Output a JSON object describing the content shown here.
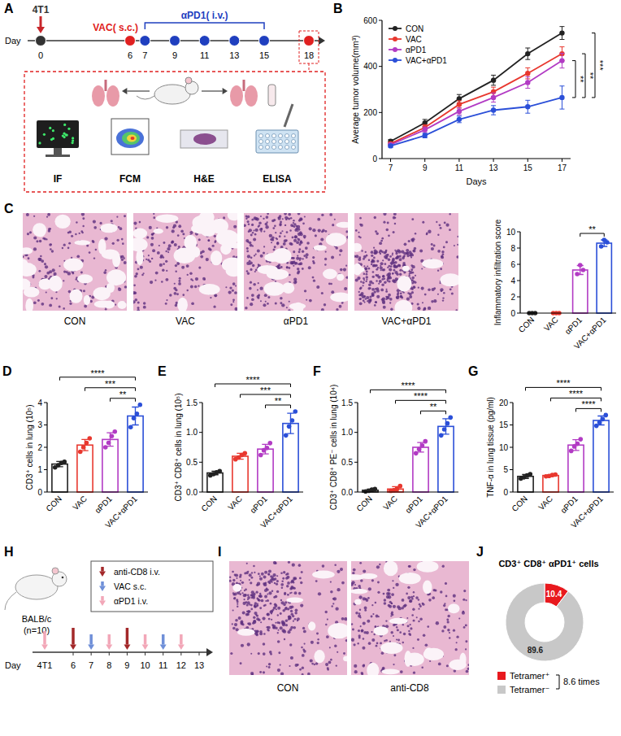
{
  "panel_labels": [
    "A",
    "B",
    "C",
    "D",
    "E",
    "F",
    "G",
    "H",
    "I",
    "J"
  ],
  "timeline_a": {
    "day_label": "Day",
    "days": [
      0,
      6,
      7,
      9,
      11,
      13,
      15,
      18
    ],
    "events": [
      {
        "label": "4T1",
        "days": [
          0
        ],
        "color": "#333333"
      },
      {
        "label": "VAC( s.c.)",
        "days": [
          6
        ],
        "color": "#e02020"
      },
      {
        "label": "αPD1( i.v.)",
        "days": [
          7,
          9,
          11,
          13,
          15
        ],
        "color": "#1f3fbf"
      }
    ],
    "assays": [
      "IF",
      "FCM",
      "H&E",
      "ELISA"
    ]
  },
  "images_c": {
    "labels": [
      "CON",
      "VAC",
      "αPD1",
      "VAC+αPD1"
    ]
  },
  "timeline_h": {
    "strain": "BALB/c",
    "n_label": "(n=10)",
    "tumor": "4T1",
    "day_label": "Day",
    "days": [
      6,
      7,
      8,
      9,
      10,
      11,
      12,
      13
    ],
    "treatments": [
      {
        "label": "anti-CD8 i.v.",
        "days": [
          6,
          9
        ],
        "color": "#a3282a"
      },
      {
        "label": "VAC s.c.",
        "days": [
          7,
          11
        ],
        "color": "#6f8fd8"
      },
      {
        "label": "αPD1 i.v.",
        "days": [
          8,
          10,
          12
        ],
        "color": "#f2a7b8"
      }
    ]
  },
  "images_i": {
    "labels": [
      "CON",
      "anti-CD8"
    ]
  },
  "chart_data": [
    {
      "type": "line",
      "x_label": "Days",
      "y_label": "Average tumor volume(mm³)",
      "x": [
        7,
        9,
        11,
        13,
        15,
        17
      ],
      "xlim": [
        6.5,
        17.5
      ],
      "xticks": [
        7,
        9,
        11,
        13,
        15,
        17
      ],
      "ylim": [
        0,
        600
      ],
      "yticks": [
        0,
        200,
        400,
        600
      ],
      "grid": false,
      "legend": "top-left",
      "marker": "circle",
      "series": [
        {
          "name": "CON",
          "color": "#222222",
          "values": [
            75,
            155,
            260,
            340,
            455,
            545
          ],
          "errors": [
            8,
            15,
            18,
            22,
            25,
            28
          ]
        },
        {
          "name": "VAC",
          "color": "#e8382f",
          "values": [
            65,
            135,
            235,
            290,
            370,
            455
          ],
          "errors": [
            7,
            12,
            16,
            20,
            24,
            30
          ]
        },
        {
          "name": "αPD1",
          "color": "#b23bc4",
          "values": [
            60,
            125,
            205,
            265,
            330,
            425
          ],
          "errors": [
            6,
            12,
            15,
            20,
            25,
            32
          ]
        },
        {
          "name": "VAC+αPD1",
          "color": "#2b4fd8",
          "values": [
            55,
            100,
            170,
            210,
            225,
            265
          ],
          "errors": [
            6,
            10,
            14,
            20,
            28,
            50
          ]
        }
      ],
      "annotations": [
        {
          "from": "αPD1",
          "to": "VAC+αPD1",
          "text": "**"
        },
        {
          "from": "VAC",
          "to": "VAC+αPD1",
          "text": "**"
        },
        {
          "from": "CON",
          "to": "VAC+αPD1",
          "text": "***"
        }
      ]
    },
    {
      "type": "bar",
      "y_label": "Inflammatory infiltration score",
      "categories": [
        "CON",
        "VAC",
        "αPD1",
        "VAC+αPD1"
      ],
      "colors": [
        "#222222",
        "#e8382f",
        "#b23bc4",
        "#2b4fd8"
      ],
      "values": [
        0,
        0,
        5.3,
        8.6
      ],
      "errors": [
        0,
        0,
        0.55,
        0.4
      ],
      "points": [
        [
          0,
          0,
          0
        ],
        [
          0,
          0,
          0
        ],
        [
          4.8,
          5.9,
          5.3
        ],
        [
          8.2,
          9.0,
          8.7
        ]
      ],
      "ylim": [
        0,
        10
      ],
      "yticks": [
        0,
        2,
        4,
        6,
        8,
        10
      ],
      "annotations": [
        {
          "from": "αPD1",
          "to": "VAC+αPD1",
          "text": "**"
        }
      ]
    },
    {
      "type": "bar",
      "y_label": "CD3⁺ cells in lung (10⁵)",
      "categories": [
        "CON",
        "VAC",
        "αPD1",
        "VAC+αPD1"
      ],
      "colors": [
        "#222222",
        "#e8382f",
        "#b23bc4",
        "#2b4fd8"
      ],
      "values": [
        1.25,
        2.1,
        2.35,
        3.4
      ],
      "errors": [
        0.12,
        0.25,
        0.3,
        0.4
      ],
      "points": [
        [
          1.1,
          1.2,
          1.3,
          1.35
        ],
        [
          1.8,
          2.0,
          2.2,
          2.4
        ],
        [
          2.0,
          2.2,
          2.5,
          2.7
        ],
        [
          2.9,
          3.3,
          3.5,
          3.9
        ]
      ],
      "ylim": [
        0,
        4
      ],
      "yticks": [
        0,
        1,
        2,
        3,
        4
      ],
      "annotations": [
        {
          "from": "CON",
          "to": "VAC+αPD1",
          "text": "****"
        },
        {
          "from": "VAC",
          "to": "VAC+αPD1",
          "text": "***"
        },
        {
          "from": "αPD1",
          "to": "VAC+αPD1",
          "text": "**"
        }
      ]
    },
    {
      "type": "bar",
      "y_label": "CD3⁺ CD8⁺ cells in lung (10⁵)",
      "categories": [
        "CON",
        "VAC",
        "αPD1",
        "VAC+αPD1"
      ],
      "colors": [
        "#222222",
        "#e8382f",
        "#b23bc4",
        "#2b4fd8"
      ],
      "values": [
        0.32,
        0.6,
        0.72,
        1.15
      ],
      "errors": [
        0.03,
        0.05,
        0.08,
        0.17
      ],
      "points": [
        [
          0.28,
          0.3,
          0.33,
          0.35
        ],
        [
          0.55,
          0.58,
          0.62,
          0.65
        ],
        [
          0.62,
          0.7,
          0.74,
          0.82
        ],
        [
          0.95,
          1.1,
          1.2,
          1.35
        ]
      ],
      "ylim": [
        0,
        1.5
      ],
      "yticks": [
        {
          "value": 0,
          "label": "0.0"
        },
        {
          "value": 0.5,
          "label": "0.5"
        },
        {
          "value": 1,
          "label": "1.0"
        },
        {
          "value": 1.5,
          "label": "1.5"
        }
      ],
      "annotations": [
        {
          "from": "CON",
          "to": "VAC+αPD1",
          "text": "****"
        },
        {
          "from": "VAC",
          "to": "VAC+αPD1",
          "text": "***"
        },
        {
          "from": "αPD1",
          "to": "VAC+αPD1",
          "text": "**"
        }
      ]
    },
    {
      "type": "bar",
      "y_label": "CD3⁺ CD8⁺ PE⁻ cells in lung (10⁴)",
      "categories": [
        "CON",
        "VAC",
        "αPD1",
        "VAC+αPD1"
      ],
      "colors": [
        "#222222",
        "#e8382f",
        "#b23bc4",
        "#2b4fd8"
      ],
      "values": [
        0.03,
        0.05,
        0.75,
        1.1
      ],
      "errors": [
        0.02,
        0.04,
        0.08,
        0.13
      ],
      "points": [
        [
          0.01,
          0.02,
          0.04,
          0.05
        ],
        [
          0.02,
          0.03,
          0.05,
          0.1
        ],
        [
          0.65,
          0.72,
          0.78,
          0.85
        ],
        [
          0.95,
          1.05,
          1.15,
          1.25
        ]
      ],
      "ylim": [
        0,
        1.5
      ],
      "yticks": [
        {
          "value": 0,
          "label": "0.0"
        },
        {
          "value": 0.5,
          "label": "0.5"
        },
        {
          "value": 1,
          "label": "1.0"
        },
        {
          "value": 1.5,
          "label": "1.5"
        }
      ],
      "annotations": [
        {
          "from": "CON",
          "to": "VAC+αPD1",
          "text": "****"
        },
        {
          "from": "VAC",
          "to": "VAC+αPD1",
          "text": "****"
        },
        {
          "from": "αPD1",
          "to": "VAC+αPD1",
          "text": "**"
        }
      ]
    },
    {
      "type": "bar",
      "y_label": "TNF-α in lung tissue (pg/ml)",
      "categories": [
        "CON",
        "VAC",
        "αPD1",
        "VAC+αPD1"
      ],
      "colors": [
        "#222222",
        "#e8382f",
        "#b23bc4",
        "#2b4fd8"
      ],
      "values": [
        3.5,
        3.7,
        10.5,
        16
      ],
      "errors": [
        0.45,
        0.2,
        1.2,
        1.0
      ],
      "points": [
        [
          3.0,
          3.3,
          3.7,
          4.0
        ],
        [
          3.5,
          3.6,
          3.8,
          3.9
        ],
        [
          9.2,
          10.2,
          10.8,
          11.8
        ],
        [
          14.8,
          15.6,
          16.3,
          17.2
        ]
      ],
      "ylim": [
        0,
        20
      ],
      "yticks": [
        0,
        5,
        10,
        15,
        20
      ],
      "annotations": [
        {
          "from": "CON",
          "to": "VAC+αPD1",
          "text": "****"
        },
        {
          "from": "VAC",
          "to": "VAC+αPD1",
          "text": "****"
        },
        {
          "from": "αPD1",
          "to": "VAC+αPD1",
          "text": "****"
        }
      ]
    },
    {
      "type": "donut",
      "title": "CD3⁺ CD8⁺ αPD1⁺ cells",
      "categories": [
        "Tetramer⁺",
        "Tetramer⁻"
      ],
      "values": [
        10.4,
        89.6
      ],
      "colors": [
        "#e8191e",
        "#c8c8c8"
      ],
      "data_labels": true,
      "legend": "bottom",
      "annotation": "8.6 times"
    }
  ]
}
